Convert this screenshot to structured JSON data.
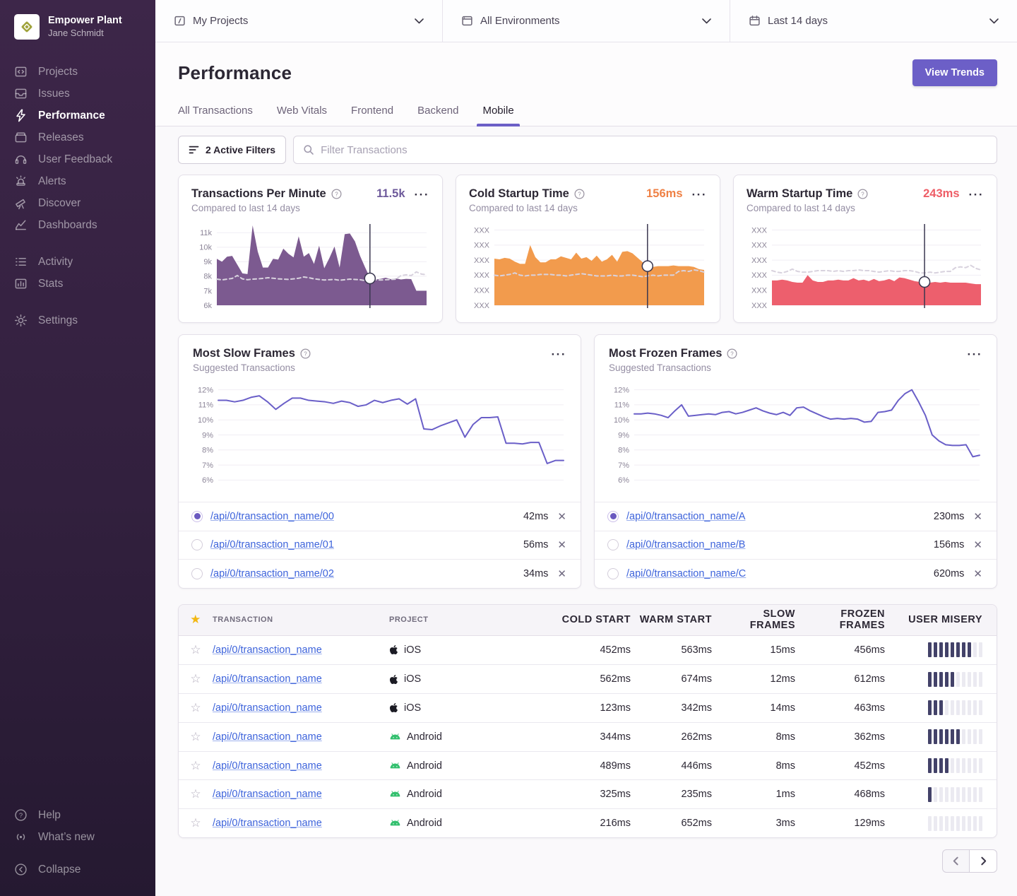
{
  "sidebar": {
    "org_name": "Empower Plant",
    "user_name": "Jane Schmidt",
    "primary_items": [
      {
        "label": "Projects"
      },
      {
        "label": "Issues"
      },
      {
        "label": "Performance",
        "active": true
      },
      {
        "label": "Releases"
      },
      {
        "label": "User Feedback"
      },
      {
        "label": "Alerts"
      },
      {
        "label": "Discover"
      },
      {
        "label": "Dashboards"
      }
    ],
    "secondary_items": [
      {
        "label": "Activity"
      },
      {
        "label": "Stats"
      }
    ],
    "tertiary_items": [
      {
        "label": "Settings"
      }
    ],
    "footer_items": [
      {
        "label": "Help"
      },
      {
        "label": "What’s new"
      }
    ],
    "collapse_label": "Collapse"
  },
  "topbar": {
    "project_selector": "My Projects",
    "environment_selector": "All Environments",
    "date_selector": "Last 14 days"
  },
  "header": {
    "page_title": "Performance",
    "view_trends_label": "View Trends",
    "tabs": [
      {
        "label": "All Transactions"
      },
      {
        "label": "Web Vitals"
      },
      {
        "label": "Frontend"
      },
      {
        "label": "Backend"
      },
      {
        "label": "Mobile",
        "active": true
      }
    ]
  },
  "filter_bar": {
    "active_filters_label": "2 Active Filters",
    "search_placeholder": "Filter Transactions"
  },
  "icons": {
    "ellipsis": "···",
    "close": "✕",
    "star_filled": "★",
    "star_outline": "☆",
    "help": "?"
  },
  "summary_cards": [
    {
      "title": "Transactions Per Minute",
      "subtitle": "Compared to last 14 days",
      "value": "11.5k",
      "value_color": "#6e5a9b"
    },
    {
      "title": "Cold Startup Time",
      "subtitle": "Compared to last 14 days",
      "value": "156ms",
      "value_color": "#ef8145"
    },
    {
      "title": "Warm Startup Time",
      "subtitle": "Compared to last 14 days",
      "value": "243ms",
      "value_color": "#ee5d66"
    }
  ],
  "suggested_cards": [
    {
      "title": "Most Slow Frames",
      "subtitle": "Suggested Transactions",
      "rows": [
        {
          "name": "/api/0/transaction_name/00",
          "value": "42ms",
          "selected": true
        },
        {
          "name": "/api/0/transaction_name/01",
          "value": "56ms",
          "selected": false
        },
        {
          "name": "/api/0/transaction_name/02",
          "value": "34ms",
          "selected": false
        }
      ]
    },
    {
      "title": "Most Frozen Frames",
      "subtitle": "Suggested Transactions",
      "rows": [
        {
          "name": "/api/0/transaction_name/A",
          "value": "230ms",
          "selected": true
        },
        {
          "name": "/api/0/transaction_name/B",
          "value": "156ms",
          "selected": false
        },
        {
          "name": "/api/0/transaction_name/C",
          "value": "620ms",
          "selected": false
        }
      ]
    }
  ],
  "table": {
    "columns": [
      "TRANSACTION",
      "PROJECT",
      "COLD START",
      "WARM START",
      "SLOW FRAMES",
      "FROZEN FRAMES",
      "USER MISERY"
    ],
    "rows": [
      {
        "transaction": "/api/0/transaction_name",
        "platform": "iOS",
        "cold": "452ms",
        "warm": "563ms",
        "slow": "15ms",
        "frozen": "456ms",
        "misery": 8
      },
      {
        "transaction": "/api/0/transaction_name",
        "platform": "iOS",
        "cold": "562ms",
        "warm": "674ms",
        "slow": "12ms",
        "frozen": "612ms",
        "misery": 5
      },
      {
        "transaction": "/api/0/transaction_name",
        "platform": "iOS",
        "cold": "123ms",
        "warm": "342ms",
        "slow": "14ms",
        "frozen": "463ms",
        "misery": 3
      },
      {
        "transaction": "/api/0/transaction_name",
        "platform": "Android",
        "cold": "344ms",
        "warm": "262ms",
        "slow": "8ms",
        "frozen": "362ms",
        "misery": 6
      },
      {
        "transaction": "/api/0/transaction_name",
        "platform": "Android",
        "cold": "489ms",
        "warm": "446ms",
        "slow": "8ms",
        "frozen": "452ms",
        "misery": 4
      },
      {
        "transaction": "/api/0/transaction_name",
        "platform": "Android",
        "cold": "325ms",
        "warm": "235ms",
        "slow": "1ms",
        "frozen": "468ms",
        "misery": 1
      },
      {
        "transaction": "/api/0/transaction_name",
        "platform": "Android",
        "cold": "216ms",
        "warm": "652ms",
        "slow": "3ms",
        "frozen": "129ms",
        "misery": 0
      }
    ]
  },
  "chart_data": [
    {
      "type": "area",
      "title": "Transactions Per Minute",
      "color": "#7c5a90",
      "ylim": [
        6000,
        11600
      ],
      "baseline": 6000,
      "grid": true,
      "legend": "none",
      "yticks": [
        {
          "v": 11000,
          "label": "11k"
        },
        {
          "v": 10000,
          "label": "10k"
        },
        {
          "v": 9000,
          "label": "9k"
        },
        {
          "v": 8000,
          "label": "8k"
        },
        {
          "v": 7000,
          "label": "7k"
        },
        {
          "v": 6000,
          "label": "6k"
        }
      ],
      "values": [
        9200,
        9000,
        9350,
        9400,
        8800,
        8200,
        8150,
        11500,
        9700,
        8600,
        8600,
        9200,
        9150,
        9900,
        9550,
        9300,
        10750,
        9350,
        9600,
        8850,
        10100,
        8550,
        9250,
        10050,
        8600,
        10900,
        10950,
        10400,
        9400,
        8600,
        7850,
        7780,
        7820,
        7900,
        7800,
        7850,
        7780,
        7820,
        7800,
        7000,
        7000,
        7000
      ],
      "trend": [
        7800,
        7750,
        7800,
        7850,
        8050,
        7820,
        7760,
        7800,
        7820,
        7850,
        7900,
        7860,
        7820,
        7800,
        7780,
        7820,
        7860,
        7950,
        7900,
        7820,
        7780,
        7740,
        7760,
        7780,
        7720,
        7760,
        7800,
        7780,
        7760,
        7700,
        7720,
        7760,
        7740,
        7760,
        7780,
        7800,
        8050,
        8100,
        8050,
        8300,
        8150,
        8100
      ],
      "marker": {
        "x": 0.73,
        "y": 7850
      }
    },
    {
      "type": "area",
      "title": "Cold Startup Time",
      "color": "#f29b4d",
      "ylim": [
        0,
        108
      ],
      "baseline": 0,
      "grid": true,
      "legend": "none",
      "yticks": [
        {
          "v": 100,
          "label": "XXX"
        },
        {
          "v": 80,
          "label": "XXX"
        },
        {
          "v": 60,
          "label": "XXX"
        },
        {
          "v": 40,
          "label": "XXX"
        },
        {
          "v": 20,
          "label": "XXX"
        },
        {
          "v": 0,
          "label": "XXX"
        }
      ],
      "values": [
        62,
        61,
        63,
        62,
        58,
        55,
        55,
        80,
        64,
        57,
        57,
        61,
        61,
        65,
        63,
        61,
        70,
        62,
        64,
        59,
        66,
        58,
        61,
        67,
        58,
        71,
        72,
        69,
        63,
        57,
        52,
        51,
        52,
        52,
        52,
        53,
        52,
        52,
        52,
        51,
        48,
        47
      ],
      "trend": [
        40,
        39,
        40,
        41,
        43,
        40,
        39,
        40,
        40,
        41,
        41,
        41,
        40,
        40,
        39,
        40,
        41,
        42,
        41,
        40,
        39,
        39,
        39,
        40,
        39,
        39,
        40,
        40,
        39,
        38,
        39,
        40,
        39,
        40,
        40,
        40,
        45,
        46,
        45,
        47,
        46,
        44
      ],
      "marker": {
        "x": 0.73,
        "y": 52
      }
    },
    {
      "type": "area",
      "title": "Warm Startup Time",
      "color": "#ed5f6d",
      "ylim": [
        0,
        108
      ],
      "baseline": 0,
      "grid": true,
      "legend": "none",
      "yticks": [
        {
          "v": 100,
          "label": "XXX"
        },
        {
          "v": 80,
          "label": "XXX"
        },
        {
          "v": 60,
          "label": "XXX"
        },
        {
          "v": 40,
          "label": "XXX"
        },
        {
          "v": 20,
          "label": "XXX"
        },
        {
          "v": 0,
          "label": "XXX"
        }
      ],
      "values": [
        33,
        33,
        34,
        33,
        31,
        30,
        30,
        40,
        33,
        31,
        31,
        33,
        33,
        34,
        33,
        33,
        36,
        33,
        34,
        32,
        35,
        32,
        33,
        35,
        32,
        37,
        36,
        34,
        32,
        31,
        30,
        30,
        31,
        30,
        31,
        30,
        30,
        30,
        30,
        29,
        28,
        28
      ],
      "trend": [
        46,
        44,
        43,
        45,
        48,
        45,
        44,
        44,
        45,
        46,
        46,
        46,
        45,
        46,
        45,
        46,
        46,
        47,
        46,
        46,
        45,
        44,
        45,
        46,
        45,
        45,
        46,
        46,
        45,
        43,
        43,
        44,
        43,
        44,
        45,
        45,
        50,
        51,
        50,
        53,
        49,
        47
      ],
      "marker": {
        "x": 0.73,
        "y": 31
      }
    },
    {
      "type": "line",
      "title": "Most Slow Frames",
      "color": "#6a5fc8",
      "ylim": [
        5.5,
        12.5
      ],
      "grid": true,
      "legend": "none",
      "yticks": [
        {
          "v": 12,
          "label": "12%"
        },
        {
          "v": 11,
          "label": "11%"
        },
        {
          "v": 10,
          "label": "10%"
        },
        {
          "v": 9,
          "label": "9%"
        },
        {
          "v": 8,
          "label": "8%"
        },
        {
          "v": 7,
          "label": "7%"
        },
        {
          "v": 6,
          "label": "6%"
        }
      ],
      "values": [
        11.3,
        11.3,
        11.2,
        11.3,
        11.5,
        11.6,
        11.2,
        10.7,
        11.1,
        11.45,
        11.45,
        11.3,
        11.25,
        11.2,
        11.1,
        11.25,
        11.15,
        10.9,
        11.0,
        11.3,
        11.15,
        11.3,
        11.4,
        11.05,
        11.4,
        9.4,
        9.35,
        9.6,
        9.8,
        10.0,
        8.85,
        9.7,
        10.15,
        10.15,
        10.2,
        8.45,
        8.45,
        8.4,
        8.5,
        8.5,
        7.1,
        7.3,
        7.3
      ]
    },
    {
      "type": "line",
      "title": "Most Frozen Frames",
      "color": "#6a5fc8",
      "ylim": [
        5.5,
        12.5
      ],
      "grid": true,
      "legend": "none",
      "yticks": [
        {
          "v": 12,
          "label": "12%"
        },
        {
          "v": 11,
          "label": "11%"
        },
        {
          "v": 10,
          "label": "10%"
        },
        {
          "v": 9,
          "label": "9%"
        },
        {
          "v": 8,
          "label": "8%"
        },
        {
          "v": 7,
          "label": "7%"
        },
        {
          "v": 6,
          "label": "6%"
        }
      ],
      "values": [
        10.4,
        10.4,
        10.45,
        10.4,
        10.3,
        10.15,
        10.6,
        11.0,
        10.25,
        10.3,
        10.35,
        10.4,
        10.35,
        10.5,
        10.55,
        10.4,
        10.5,
        10.65,
        10.8,
        10.6,
        10.45,
        10.35,
        10.5,
        10.3,
        10.8,
        10.85,
        10.6,
        10.4,
        10.2,
        10.05,
        10.1,
        10.05,
        10.1,
        10.05,
        9.85,
        9.9,
        10.5,
        10.55,
        10.65,
        11.3,
        11.75,
        12.0,
        11.2,
        10.3,
        9.0,
        8.6,
        8.35,
        8.3,
        8.3,
        8.35,
        7.55,
        7.65
      ]
    }
  ]
}
